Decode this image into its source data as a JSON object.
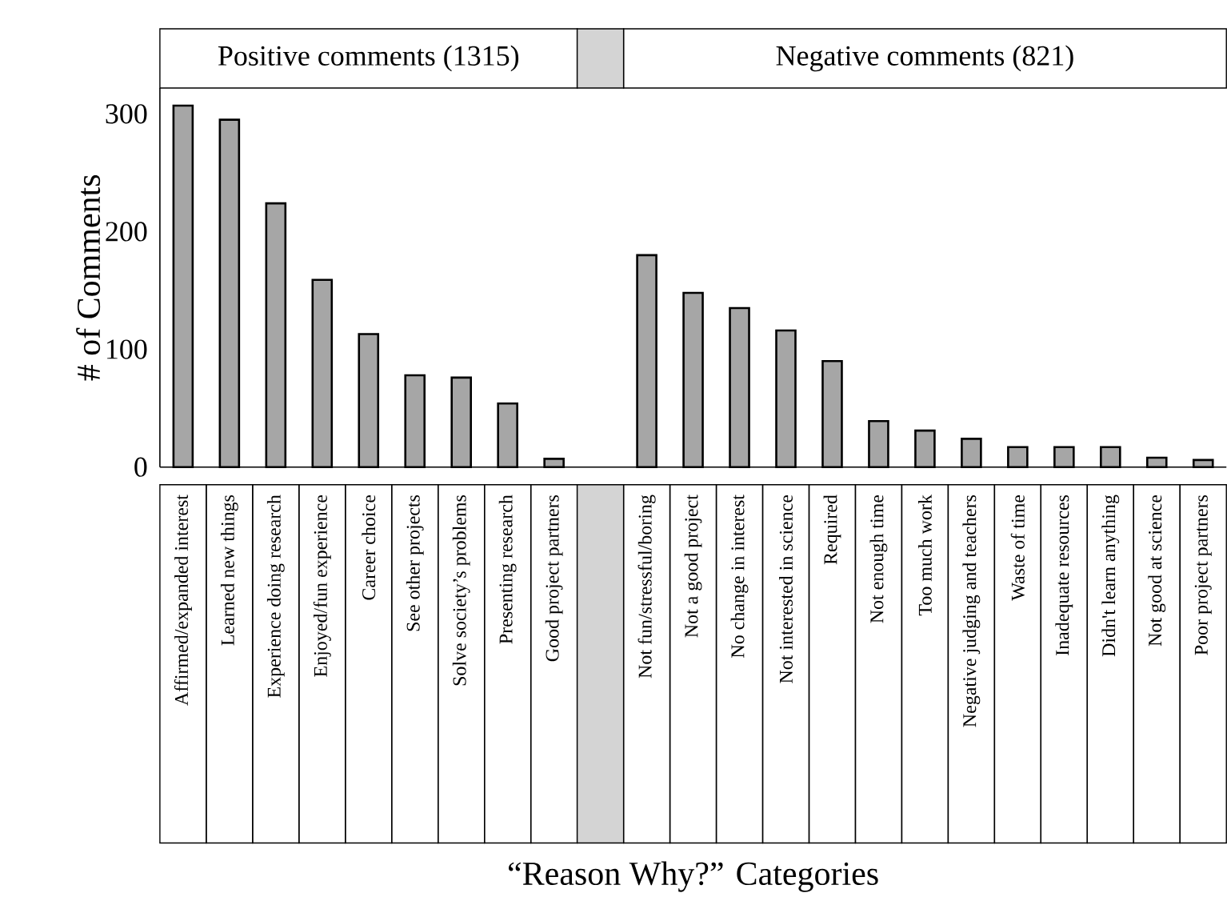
{
  "chart_data": {
    "type": "bar",
    "ylabel": "# of Comments",
    "xlabel": "“Reason Why?” Categories",
    "annotations": [
      "Positive comments (1315)",
      "Negative comments (821)"
    ],
    "categories": [
      "Affirmed/expanded interest",
      "Learned new things",
      "Experience doing research",
      "Enjoyed/fun experience",
      "Career choice",
      "See other projects",
      "Solve society’s problems",
      "Presenting research",
      "Good project partners",
      null,
      "Not fun/stressful/boring",
      "Not a good project",
      "No change in interest",
      "Not interested in science",
      "Required",
      "Not enough time",
      "Too much work",
      "Negative judging and teachers",
      "Waste of time",
      "Inadequate resources",
      "Didn't learn anything",
      "Not good at science",
      "Poor project partners"
    ],
    "values": [
      307,
      295,
      224,
      159,
      113,
      78,
      76,
      54,
      7,
      null,
      180,
      148,
      135,
      116,
      90,
      39,
      31,
      24,
      17,
      17,
      17,
      8,
      6
    ],
    "color": "#a6a6a6",
    "ylim": [
      0,
      322
    ],
    "yticks": [
      0,
      100,
      200,
      300
    ]
  }
}
